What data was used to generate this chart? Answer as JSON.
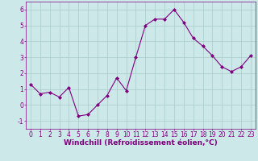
{
  "x": [
    0,
    1,
    2,
    3,
    4,
    5,
    6,
    7,
    8,
    9,
    10,
    11,
    12,
    13,
    14,
    15,
    16,
    17,
    18,
    19,
    20,
    21,
    22,
    23
  ],
  "y": [
    1.3,
    0.7,
    0.8,
    0.5,
    1.1,
    -0.7,
    -0.6,
    0.0,
    0.6,
    1.7,
    0.9,
    3.0,
    5.0,
    5.4,
    5.4,
    6.0,
    5.2,
    4.2,
    3.7,
    3.1,
    2.4,
    2.1,
    2.4,
    3.1
  ],
  "line_color": "#800080",
  "marker": "D",
  "marker_size": 2.0,
  "bg_color": "#cce8e8",
  "grid_color": "#aacccc",
  "xlabel": "Windchill (Refroidissement éolien,°C)",
  "xlabel_fontsize": 6.5,
  "tick_fontsize": 5.5,
  "ylim": [
    -1.5,
    6.5
  ],
  "xlim": [
    -0.5,
    23.5
  ],
  "yticks": [
    -1,
    0,
    1,
    2,
    3,
    4,
    5,
    6
  ],
  "xticks": [
    0,
    1,
    2,
    3,
    4,
    5,
    6,
    7,
    8,
    9,
    10,
    11,
    12,
    13,
    14,
    15,
    16,
    17,
    18,
    19,
    20,
    21,
    22,
    23
  ]
}
